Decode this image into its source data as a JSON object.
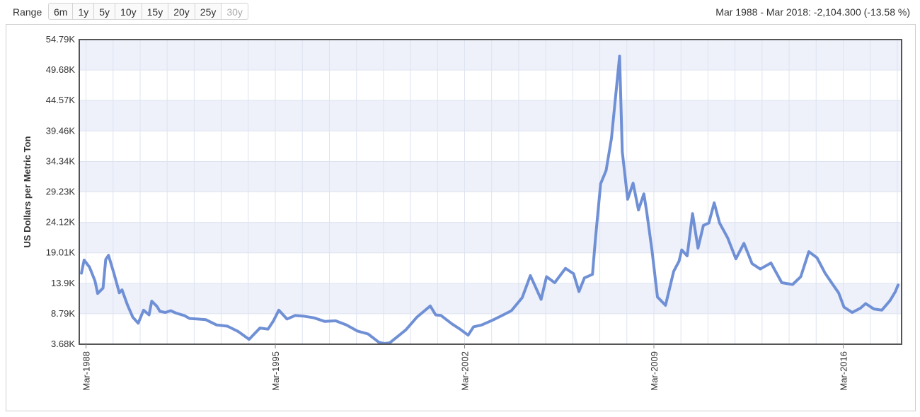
{
  "toolbar": {
    "range_label": "Range",
    "buttons": [
      "6m",
      "1y",
      "5y",
      "10y",
      "15y",
      "20y",
      "25y",
      "30y"
    ],
    "disabled_button": "30y",
    "summary": "Mar 1988 - Mar 2018: -2,104.300 (-13.58 %)"
  },
  "colors": {
    "line": "#7090d6",
    "band": "#eef1fa",
    "grid": "#dde3ef",
    "frame": "#555555"
  },
  "chart_data": {
    "type": "line",
    "title": "",
    "xlabel": "",
    "ylabel": "US Dollars per Metric Ton",
    "ylim": [
      3.68,
      54.79
    ],
    "y_unit": "thousand USD per metric ton",
    "yticks": [
      3.68,
      8.79,
      13.9,
      19.01,
      24.12,
      29.23,
      34.34,
      39.46,
      44.57,
      49.68,
      54.79
    ],
    "ytick_labels": [
      "3.68K",
      "8.79K",
      "13.9K",
      "19.01K",
      "24.12K",
      "29.23K",
      "34.34K",
      "39.46K",
      "44.57K",
      "49.68K",
      "54.79K"
    ],
    "xlim": [
      1987.92,
      2018.33
    ],
    "xticks": [
      1988.17,
      1995.17,
      2002.17,
      2009.17,
      2016.17
    ],
    "xtick_labels": [
      "Mar-1988",
      "Mar-1995",
      "Mar-2002",
      "Mar-2009",
      "Mar-2016"
    ],
    "grid": true,
    "series": [
      {
        "x": [
          1988.0,
          1988.1,
          1988.3,
          1988.5,
          1988.6,
          1988.8,
          1988.9,
          1989.0,
          1989.2,
          1989.4,
          1989.5,
          1989.7,
          1989.9,
          1990.1,
          1990.3,
          1990.5,
          1990.6,
          1990.8,
          1990.9,
          1991.1,
          1991.3,
          1991.5,
          1991.8,
          1992.0,
          1992.3,
          1992.6,
          1993.0,
          1993.4,
          1993.8,
          1994.2,
          1994.6,
          1994.9,
          1995.1,
          1995.3,
          1995.6,
          1995.9,
          1996.2,
          1996.6,
          1997.0,
          1997.4,
          1997.8,
          1998.2,
          1998.6,
          1999.0,
          1999.2,
          1999.4,
          1999.7,
          2000.0,
          2000.4,
          2000.9,
          2001.1,
          2001.3,
          2001.7,
          2002.0,
          2002.3,
          2002.5,
          2002.8,
          2003.2,
          2003.6,
          2003.9,
          2004.3,
          2004.6,
          2004.8,
          2005.0,
          2005.2,
          2005.5,
          2005.9,
          2006.2,
          2006.4,
          2006.6,
          2006.9,
          2007.0,
          2007.2,
          2007.4,
          2007.6,
          2007.9,
          2008.0,
          2008.2,
          2008.4,
          2008.6,
          2008.8,
          2008.9,
          2009.1,
          2009.3,
          2009.6,
          2009.9,
          2010.1,
          2010.2,
          2010.4,
          2010.6,
          2010.8,
          2011.0,
          2011.2,
          2011.4,
          2011.6,
          2011.9,
          2012.2,
          2012.5,
          2012.8,
          2013.1,
          2013.5,
          2013.9,
          2014.3,
          2014.6,
          2014.9,
          2015.2,
          2015.5,
          2015.8,
          2016.0,
          2016.2,
          2016.5,
          2016.8,
          2017.0,
          2017.3,
          2017.6,
          2017.9,
          2018.1,
          2018.2
        ],
        "y": [
          15.6,
          17.8,
          16.6,
          14.3,
          12.2,
          13.1,
          17.9,
          18.6,
          15.6,
          12.3,
          12.8,
          10.3,
          8.2,
          7.2,
          9.4,
          8.6,
          10.9,
          10.0,
          9.2,
          9.0,
          9.3,
          8.9,
          8.5,
          8.0,
          7.9,
          7.8,
          6.9,
          6.7,
          5.8,
          4.5,
          6.4,
          6.2,
          7.6,
          9.4,
          7.9,
          8.5,
          8.4,
          8.1,
          7.5,
          7.6,
          6.9,
          5.9,
          5.4,
          4.0,
          3.8,
          3.9,
          5.0,
          6.1,
          8.2,
          10.1,
          8.6,
          8.5,
          7.1,
          6.2,
          5.2,
          6.6,
          6.9,
          7.7,
          8.6,
          9.3,
          11.5,
          15.2,
          13.2,
          11.2,
          15.0,
          14.0,
          16.4,
          15.5,
          12.5,
          14.8,
          15.4,
          21.0,
          30.6,
          32.8,
          38.2,
          52.0,
          36.0,
          28.0,
          30.7,
          26.2,
          28.9,
          26.0,
          19.4,
          11.6,
          10.2,
          15.9,
          17.6,
          19.5,
          18.5,
          25.6,
          19.8,
          23.6,
          24.0,
          27.4,
          24.0,
          21.5,
          18.0,
          20.6,
          17.2,
          16.3,
          17.3,
          14.0,
          13.7,
          15.0,
          19.2,
          18.2,
          15.6,
          13.6,
          12.3,
          9.9,
          9.0,
          9.7,
          10.5,
          9.6,
          9.4,
          11.0,
          12.5,
          13.6
        ]
      }
    ]
  }
}
